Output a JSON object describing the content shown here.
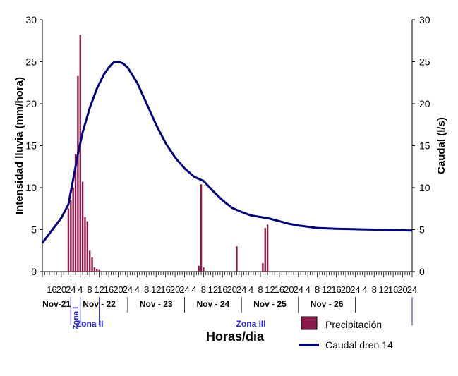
{
  "chart_data": {
    "type": "bar+line",
    "xlabel": "Horas/dia",
    "ylabel_left": "Intensidad lluvia (mm/hora)",
    "ylabel_right": "Caudal (l/s)",
    "ylim_left": [
      0,
      30
    ],
    "ylim_right": [
      0,
      30
    ],
    "y_ticks": [
      "0",
      "5",
      "10",
      "15",
      "20",
      "25",
      "30"
    ],
    "x_hour_tick_labels": [
      "16",
      "20",
      "24",
      "4",
      "8",
      "12",
      "16",
      "20",
      "24",
      "4",
      "8",
      "12",
      "16",
      "20",
      "24",
      "4",
      "8",
      "12",
      "16",
      "20",
      "24",
      "4",
      "8",
      "12",
      "16",
      "20",
      "24",
      "4",
      "8",
      "12",
      "16",
      "20",
      "24",
      "4",
      "8",
      "12",
      "16",
      "20",
      "24"
    ],
    "day_labels": [
      "Nov-21",
      "Nov - 22",
      "Nov - 23",
      "Nov - 24",
      "Nov - 25",
      "Nov - 26"
    ],
    "zone_labels": [
      "Zona I",
      "Zona II",
      "Zona III"
    ],
    "grid": false,
    "legend_position": "bottom-right",
    "series": [
      {
        "name": "Precipitación",
        "kind": "bar",
        "color": "#8b1a4a",
        "hours_since_nov21_00": [
          23,
          24,
          25,
          26,
          27,
          28,
          29,
          30,
          31,
          32,
          33,
          34,
          35,
          36,
          78,
          79,
          80,
          94,
          105,
          106,
          107
        ],
        "values": [
          7.5,
          8.5,
          10,
          14,
          23.3,
          28.2,
          10.7,
          6.5,
          6.0,
          2.5,
          1.7,
          0.5,
          0.3,
          0.2,
          0.7,
          10.4,
          0.5,
          3.0,
          1.0,
          5.2,
          5.6
        ]
      },
      {
        "name": "Caudal dren 14",
        "kind": "line",
        "color": "#000080",
        "hours_since_nov21_00": [
          12,
          16,
          20,
          23,
          25,
          27,
          29,
          32,
          35,
          38,
          40,
          42,
          44,
          46,
          48,
          52,
          56,
          60,
          64,
          68,
          72,
          76,
          80,
          84,
          88,
          92,
          96,
          100,
          104,
          108,
          112,
          116,
          120,
          128,
          136,
          144,
          152,
          160,
          168
        ],
        "values": [
          3.4,
          4.9,
          6.4,
          8.0,
          11.0,
          14.0,
          16.6,
          19.5,
          21.8,
          23.5,
          24.3,
          24.9,
          25.0,
          24.8,
          24.3,
          22.5,
          20.0,
          17.5,
          15.3,
          13.6,
          12.3,
          11.3,
          10.8,
          9.6,
          8.5,
          7.6,
          7.1,
          6.7,
          6.5,
          6.3,
          6.0,
          5.7,
          5.5,
          5.2,
          5.1,
          5.05,
          5.0,
          4.95,
          4.9
        ]
      }
    ]
  }
}
